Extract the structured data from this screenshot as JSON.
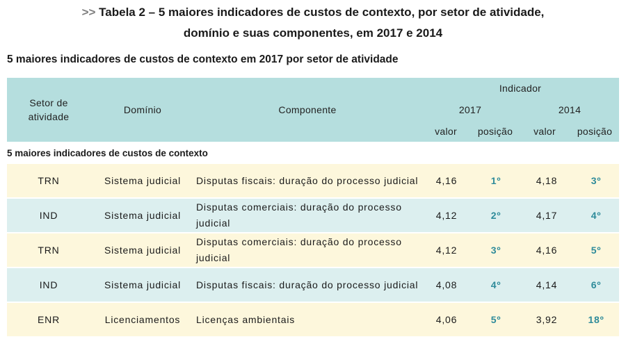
{
  "title": {
    "arrow": ">>",
    "line1": "Tabela 2 – 5 maiores indicadores de custos de contexto, por setor de atividade,",
    "line2": "domínio e suas componentes, em 2017 e 2014"
  },
  "subtitle": "5 maiores indicadores de custos de contexto em 2017 por setor de atividade",
  "header": {
    "setor_line1": "Setor de",
    "setor_line2": "atividade",
    "dominio": "Domínio",
    "componente": "Componente",
    "indicador": "Indicador",
    "year_2017": "2017",
    "year_2014": "2014",
    "valor_2017": "valor",
    "posicao_2017": "posição",
    "valor_2014": "valor",
    "posicao_2014": "posição"
  },
  "section_label": "5 maiores indicadores de custos de contexto",
  "rows": [
    {
      "setor": "TRN",
      "dominio": "Sistema judicial",
      "componente": "Disputas fiscais: duração do processo judicial",
      "valor_2017": "4,16",
      "posicao_2017": "1º",
      "valor_2014": "4,18",
      "posicao_2014": "3º"
    },
    {
      "setor": "IND",
      "dominio": "Sistema judicial",
      "componente": "Disputas comerciais: duração do processo judicial",
      "valor_2017": "4,12",
      "posicao_2017": "2º",
      "valor_2014": "4,17",
      "posicao_2014": "4º"
    },
    {
      "setor": "TRN",
      "dominio": "Sistema judicial",
      "componente": "Disputas comerciais: duração do processo judicial",
      "valor_2017": "4,12",
      "posicao_2017": "3º",
      "valor_2014": "4,16",
      "posicao_2014": "5º"
    },
    {
      "setor": "IND",
      "dominio": "Sistema judicial",
      "componente": "Disputas fiscais: duração do processo judicial",
      "valor_2017": "4,08",
      "posicao_2017": "4º",
      "valor_2014": "4,14",
      "posicao_2014": "6º"
    },
    {
      "setor": "ENR",
      "dominio": "Licenciamentos",
      "componente": "Licenças ambientais",
      "valor_2017": "4,06",
      "posicao_2017": "5º",
      "valor_2014": "3,92",
      "posicao_2014": "18º"
    }
  ],
  "colors": {
    "header_bg": "#b5dede",
    "row_odd": "#fdf7dc",
    "row_even": "#dcefef",
    "position_text": "#2e8b9a"
  }
}
